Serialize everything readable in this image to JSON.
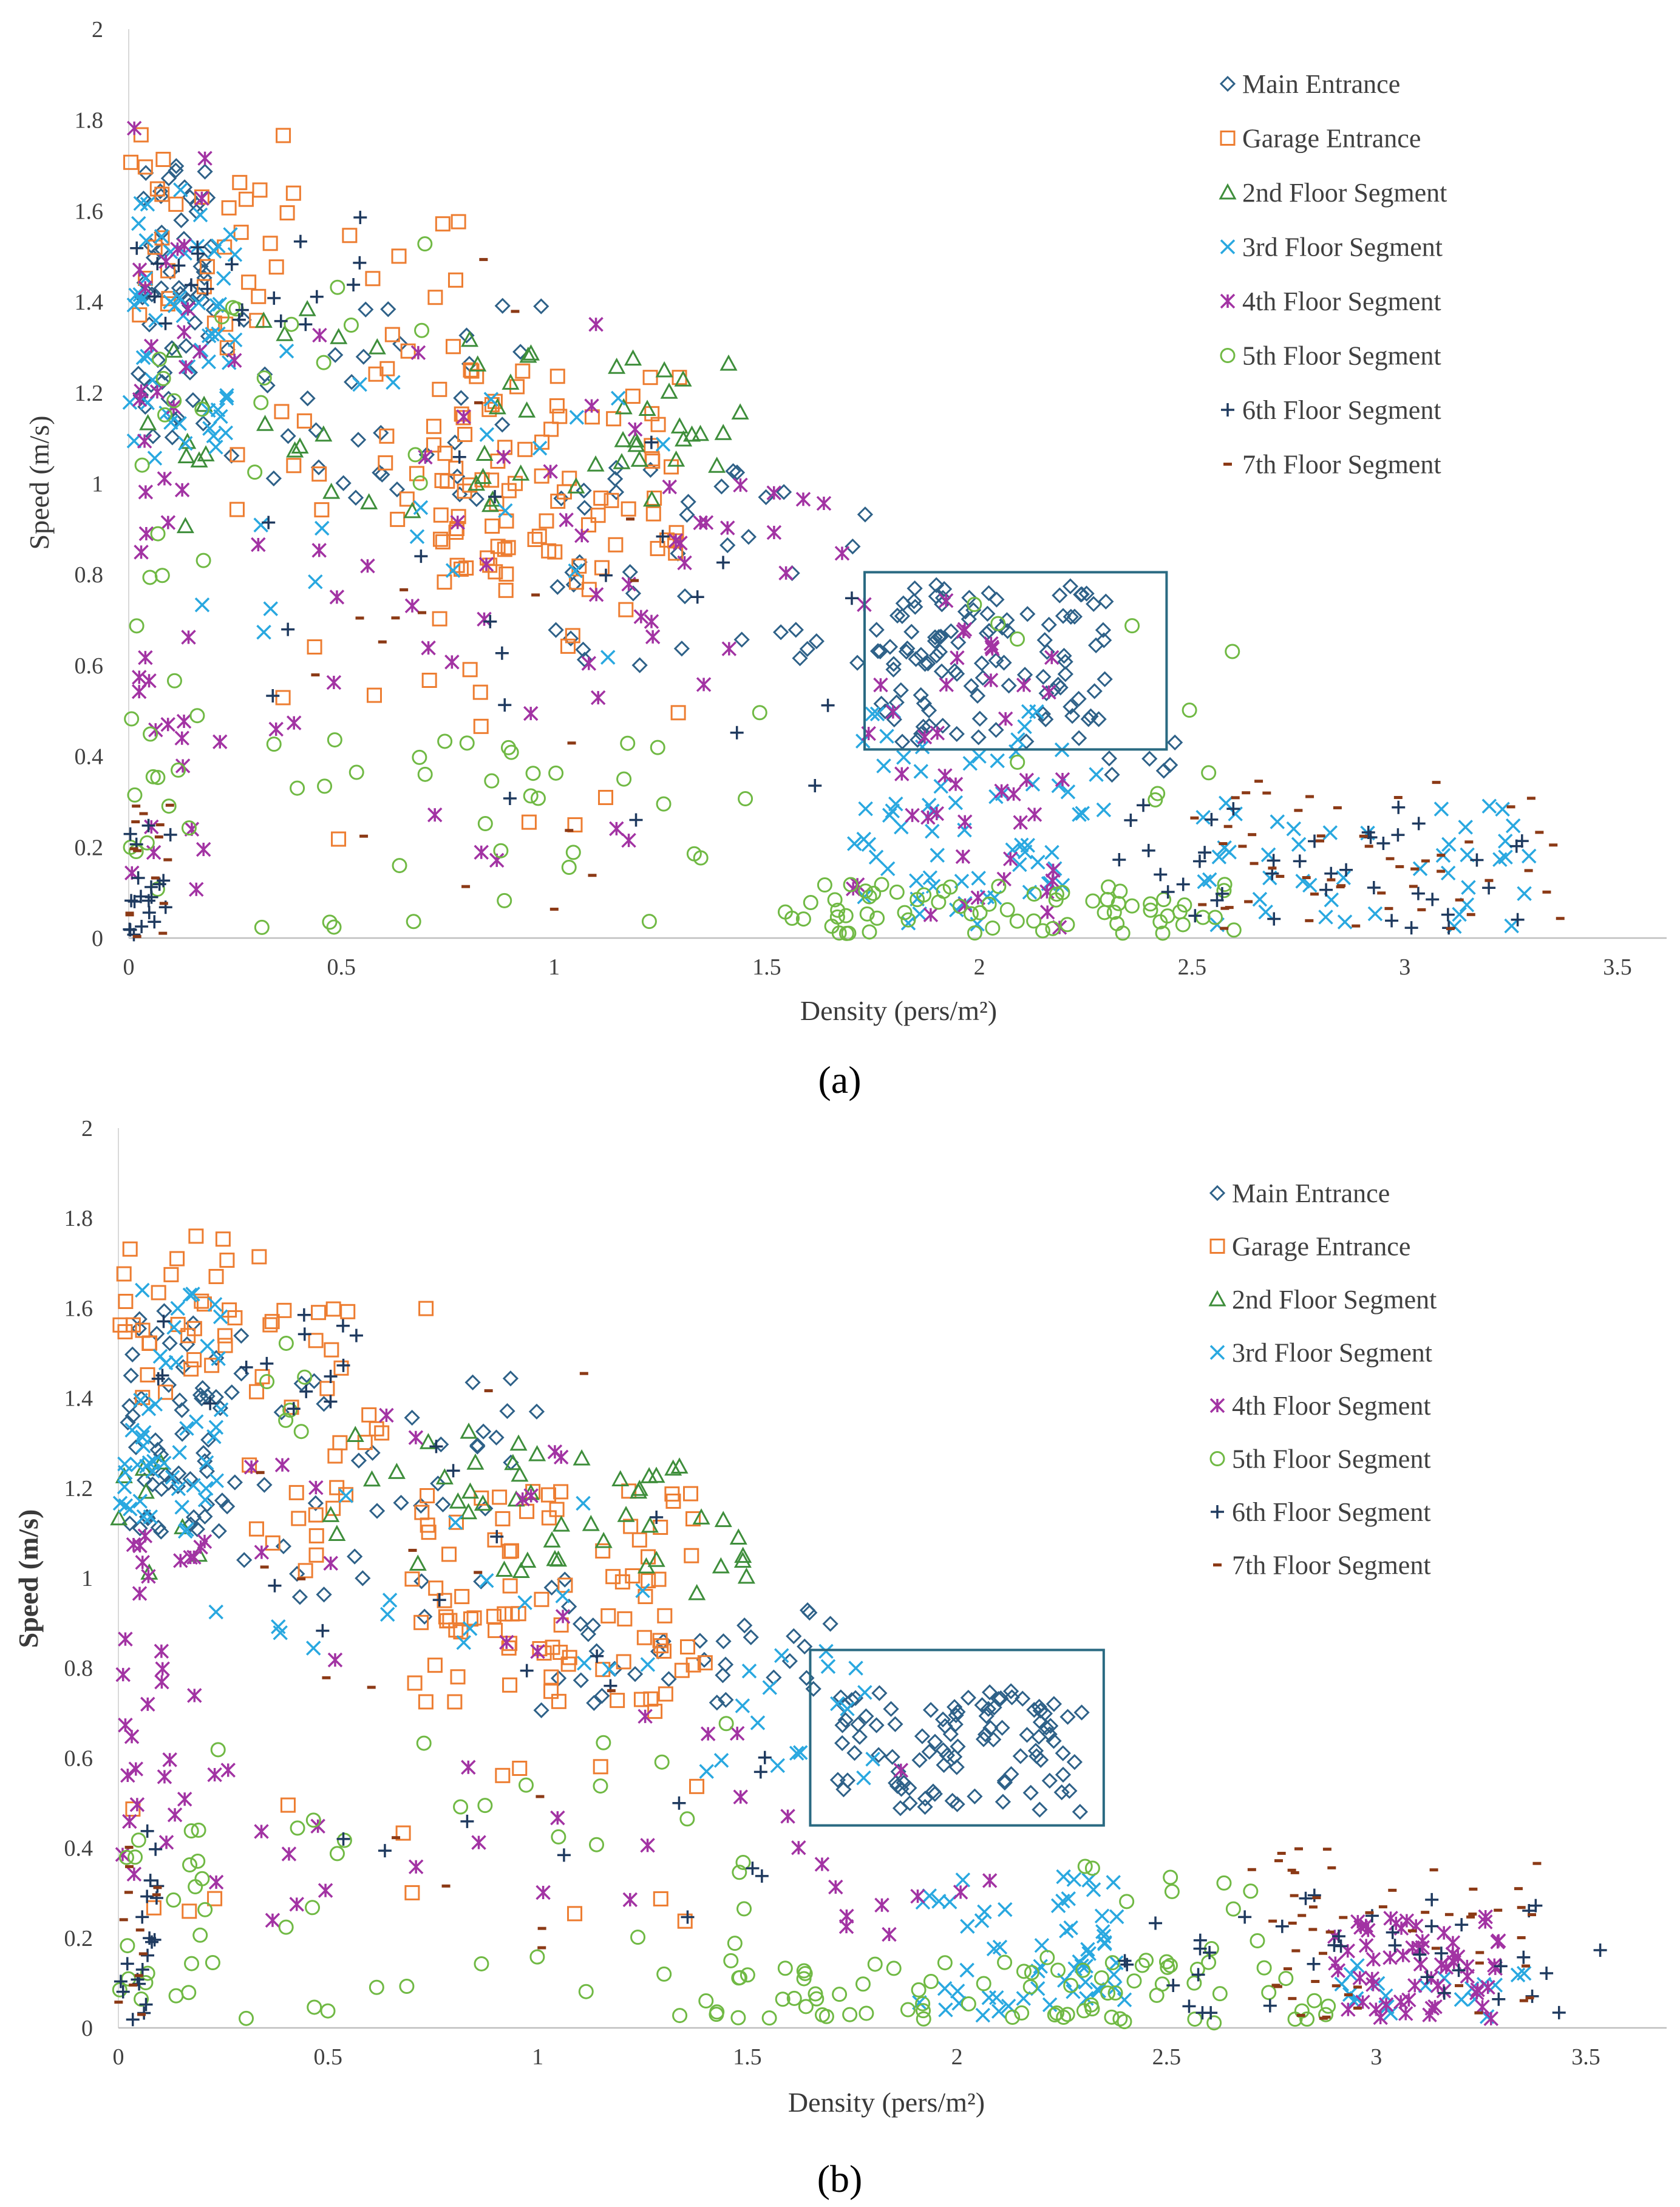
{
  "chart_data": [
    {
      "panel_label": "(a)",
      "type": "scatter",
      "xlabel": "Density (pers/m²)",
      "ylabel": "Speed (m/s)",
      "xlim": [
        0,
        3.5
      ],
      "ylim": [
        0,
        2
      ],
      "x_ticks": [
        "0",
        "0.5",
        "1",
        "1.5",
        "2",
        "2.5",
        "3",
        "3.5"
      ],
      "y_ticks": [
        "0",
        "0.2",
        "0.4",
        "0.6",
        "0.8",
        "1",
        "1.2",
        "1.4",
        "1.6",
        "1.8",
        "2"
      ],
      "grid": false,
      "legend_position": "top-right",
      "highlight_box": {
        "x_range": [
          1.73,
          2.44
        ],
        "y_range": [
          0.415,
          0.805
        ]
      },
      "series": [
        {
          "name": "Main Entrance",
          "marker": "diamond",
          "color": "#2e6188",
          "clusters": [
            {
              "x": [
                0.02,
                0.2
              ],
              "y": [
                1.1,
                1.7
              ],
              "n": 60
            },
            {
              "x": [
                0.2,
                1.0
              ],
              "y": [
                0.95,
                1.4
              ],
              "n": 35
            },
            {
              "x": [
                1.0,
                1.75
              ],
              "y": [
                0.6,
                1.05
              ],
              "n": 40
            },
            {
              "x": [
                1.75,
                2.3
              ],
              "y": [
                0.42,
                0.78
              ],
              "n": 110
            },
            {
              "x": [
                2.3,
                2.5
              ],
              "y": [
                0.35,
                0.45
              ],
              "n": 6
            }
          ]
        },
        {
          "name": "Garage Entrance",
          "marker": "square",
          "color": "#ed7d31",
          "clusters": [
            {
              "x": [
                0.0,
                0.4
              ],
              "y": [
                1.35,
                1.8
              ],
              "n": 30
            },
            {
              "x": [
                0.2,
                0.8
              ],
              "y": [
                0.9,
                1.6
              ],
              "n": 30
            },
            {
              "x": [
                0.7,
                1.3
              ],
              "y": [
                0.7,
                1.25
              ],
              "n": 90
            },
            {
              "x": [
                0.3,
                1.5
              ],
              "y": [
                0.2,
                0.7
              ],
              "n": 14
            }
          ]
        },
        {
          "name": "2nd Floor Segment",
          "marker": "triangle",
          "color": "#3e8e3b",
          "clusters": [
            {
              "x": [
                0.0,
                0.2
              ],
              "y": [
                0.88,
                1.4
              ],
              "n": 8
            },
            {
              "x": [
                0.3,
                0.9
              ],
              "y": [
                0.9,
                1.4
              ],
              "n": 14
            },
            {
              "x": [
                0.8,
                1.45
              ],
              "y": [
                0.95,
                1.32
              ],
              "n": 35
            }
          ]
        },
        {
          "name": "3rd Floor Segment",
          "marker": "x",
          "color": "#29a8e0",
          "clusters": [
            {
              "x": [
                0.0,
                0.25
              ],
              "y": [
                1.05,
                1.65
              ],
              "n": 55
            },
            {
              "x": [
                0.1,
                1.5
              ],
              "y": [
                0.6,
                1.3
              ],
              "n": 22
            },
            {
              "x": [
                1.7,
                2.3
              ],
              "y": [
                0.02,
                0.5
              ],
              "n": 70
            },
            {
              "x": [
                2.5,
                3.3
              ],
              "y": [
                0.02,
                0.3
              ],
              "n": 45
            }
          ]
        },
        {
          "name": "4th Floor Segment",
          "marker": "star",
          "color": "#a233a3",
          "clusters": [
            {
              "x": [
                0.0,
                0.2
              ],
              "y": [
                0.05,
                1.8
              ],
              "n": 40
            },
            {
              "x": [
                0.2,
                1.2
              ],
              "y": [
                0.1,
                1.4
              ],
              "n": 30
            },
            {
              "x": [
                1.0,
                1.7
              ],
              "y": [
                0.5,
                1.0
              ],
              "n": 25
            },
            {
              "x": [
                1.7,
                2.2
              ],
              "y": [
                0.02,
                0.75
              ],
              "n": 45
            }
          ]
        },
        {
          "name": "5th Floor Segment",
          "marker": "circle",
          "color": "#70b944",
          "clusters": [
            {
              "x": [
                0.0,
                0.2
              ],
              "y": [
                0.1,
                1.3
              ],
              "n": 25
            },
            {
              "x": [
                0.3,
                1.5
              ],
              "y": [
                0.02,
                0.5
              ],
              "n": 35
            },
            {
              "x": [
                1.5,
                2.6
              ],
              "y": [
                0.01,
                0.12
              ],
              "n": 70
            },
            {
              "x": [
                0.2,
                0.7
              ],
              "y": [
                1.0,
                1.55
              ],
              "n": 14
            },
            {
              "x": [
                1.9,
                2.6
              ],
              "y": [
                0.3,
                0.75
              ],
              "n": 10
            }
          ]
        },
        {
          "name": "6th Floor Segment",
          "marker": "plus",
          "color": "#1f3a5f",
          "clusters": [
            {
              "x": [
                0.0,
                0.1
              ],
              "y": [
                0.0,
                0.25
              ],
              "n": 20
            },
            {
              "x": [
                0.0,
                0.6
              ],
              "y": [
                1.35,
                1.6
              ],
              "n": 20
            },
            {
              "x": [
                0.3,
                1.7
              ],
              "y": [
                0.2,
                1.1
              ],
              "n": 20
            },
            {
              "x": [
                2.3,
                3.3
              ],
              "y": [
                0.02,
                0.3
              ],
              "n": 40
            }
          ]
        },
        {
          "name": "7th Floor Segment",
          "marker": "dash",
          "color": "#8c3a16",
          "clusters": [
            {
              "x": [
                0.0,
                0.1
              ],
              "y": [
                0.0,
                0.3
              ],
              "n": 15
            },
            {
              "x": [
                0.3,
                1.2
              ],
              "y": [
                0.05,
                1.5
              ],
              "n": 18
            },
            {
              "x": [
                2.5,
                3.4
              ],
              "y": [
                0.02,
                0.35
              ],
              "n": 55
            }
          ]
        }
      ]
    },
    {
      "panel_label": "(b)",
      "type": "scatter",
      "xlabel": "Density (pers/m²)",
      "ylabel": "Speed (m/s)",
      "xlim": [
        0,
        3.5
      ],
      "ylim": [
        0,
        2
      ],
      "x_ticks": [
        "0",
        "0.5",
        "1",
        "1.5",
        "2",
        "2.5",
        "3",
        "3.5"
      ],
      "y_ticks": [
        "0",
        "0.2",
        "0.4",
        "0.6",
        "0.8",
        "1",
        "1.2",
        "1.4",
        "1.6",
        "1.8",
        "2"
      ],
      "grid": false,
      "legend_position": "top-right",
      "highlight_box": {
        "x_range": [
          1.65,
          2.35
        ],
        "y_range": [
          0.45,
          0.84
        ]
      },
      "series": [
        {
          "name": "Main Entrance",
          "marker": "diamond",
          "color": "#2e6188",
          "clusters": [
            {
              "x": [
                0.02,
                0.3
              ],
              "y": [
                1.1,
                1.6
              ],
              "n": 60
            },
            {
              "x": [
                0.3,
                1.0
              ],
              "y": [
                0.9,
                1.45
              ],
              "n": 35
            },
            {
              "x": [
                1.0,
                1.7
              ],
              "y": [
                0.7,
                1.0
              ],
              "n": 35
            },
            {
              "x": [
                1.7,
                2.3
              ],
              "y": [
                0.48,
                0.75
              ],
              "n": 100
            }
          ]
        },
        {
          "name": "Garage Entrance",
          "marker": "square",
          "color": "#ed7d31",
          "clusters": [
            {
              "x": [
                0.0,
                0.4
              ],
              "y": [
                1.4,
                1.77
              ],
              "n": 35
            },
            {
              "x": [
                0.3,
                0.8
              ],
              "y": [
                1.0,
                1.6
              ],
              "n": 30
            },
            {
              "x": [
                0.7,
                1.4
              ],
              "y": [
                0.7,
                1.2
              ],
              "n": 90
            },
            {
              "x": [
                0.0,
                1.4
              ],
              "y": [
                0.15,
                0.65
              ],
              "n": 14
            }
          ]
        },
        {
          "name": "2nd Floor Segment",
          "marker": "triangle",
          "color": "#3e8e3b",
          "clusters": [
            {
              "x": [
                0.0,
                0.25
              ],
              "y": [
                1.0,
                1.3
              ],
              "n": 8
            },
            {
              "x": [
                0.5,
                0.9
              ],
              "y": [
                1.0,
                1.35
              ],
              "n": 14
            },
            {
              "x": [
                0.9,
                1.5
              ],
              "y": [
                0.95,
                1.3
              ],
              "n": 35
            }
          ]
        },
        {
          "name": "3rd Floor Segment",
          "marker": "x",
          "color": "#29a8e0",
          "clusters": [
            {
              "x": [
                0.0,
                0.25
              ],
              "y": [
                1.1,
                1.65
              ],
              "n": 50
            },
            {
              "x": [
                0.2,
                1.4
              ],
              "y": [
                0.75,
                1.2
              ],
              "n": 18
            },
            {
              "x": [
                1.4,
                1.8
              ],
              "y": [
                0.55,
                0.85
              ],
              "n": 18
            },
            {
              "x": [
                1.9,
                2.4
              ],
              "y": [
                0.02,
                0.35
              ],
              "n": 60
            },
            {
              "x": [
                2.9,
                3.4
              ],
              "y": [
                0.02,
                0.15
              ],
              "n": 20
            }
          ]
        },
        {
          "name": "4th Floor Segment",
          "marker": "star",
          "color": "#a233a3",
          "clusters": [
            {
              "x": [
                0.0,
                0.2
              ],
              "y": [
                0.3,
                1.1
              ],
              "n": 30
            },
            {
              "x": [
                0.2,
                1.2
              ],
              "y": [
                0.2,
                1.4
              ],
              "n": 30
            },
            {
              "x": [
                1.2,
                2.1
              ],
              "y": [
                0.2,
                0.7
              ],
              "n": 18
            },
            {
              "x": [
                2.9,
                3.3
              ],
              "y": [
                0.02,
                0.25
              ],
              "n": 60
            }
          ]
        },
        {
          "name": "5th Floor Segment",
          "marker": "circle",
          "color": "#70b944",
          "clusters": [
            {
              "x": [
                0.0,
                0.2
              ],
              "y": [
                0.05,
                0.45
              ],
              "n": 20
            },
            {
              "x": [
                0.2,
                1.5
              ],
              "y": [
                0.02,
                0.7
              ],
              "n": 35
            },
            {
              "x": [
                1.4,
                2.9
              ],
              "y": [
                0.01,
                0.16
              ],
              "n": 80
            },
            {
              "x": [
                0.3,
                0.5
              ],
              "y": [
                1.3,
                1.55
              ],
              "n": 6
            },
            {
              "x": [
                2.3,
                2.8
              ],
              "y": [
                0.1,
                0.4
              ],
              "n": 12
            }
          ]
        },
        {
          "name": "6th Floor Segment",
          "marker": "plus",
          "color": "#1f3a5f",
          "clusters": [
            {
              "x": [
                0.0,
                0.1
              ],
              "y": [
                0.0,
                0.45
              ],
              "n": 20
            },
            {
              "x": [
                0.0,
                0.6
              ],
              "y": [
                1.35,
                1.6
              ],
              "n": 15
            },
            {
              "x": [
                0.2,
                1.6
              ],
              "y": [
                0.1,
                1.3
              ],
              "n": 20
            },
            {
              "x": [
                2.4,
                3.55
              ],
              "y": [
                0.02,
                0.3
              ],
              "n": 40
            }
          ]
        },
        {
          "name": "7th Floor Segment",
          "marker": "dash",
          "color": "#8c3a16",
          "clusters": [
            {
              "x": [
                0.0,
                0.1
              ],
              "y": [
                0.0,
                0.45
              ],
              "n": 12
            },
            {
              "x": [
                0.3,
                1.3
              ],
              "y": [
                0.05,
                1.5
              ],
              "n": 15
            },
            {
              "x": [
                2.7,
                3.4
              ],
              "y": [
                0.02,
                0.4
              ],
              "n": 55
            }
          ]
        }
      ]
    }
  ]
}
